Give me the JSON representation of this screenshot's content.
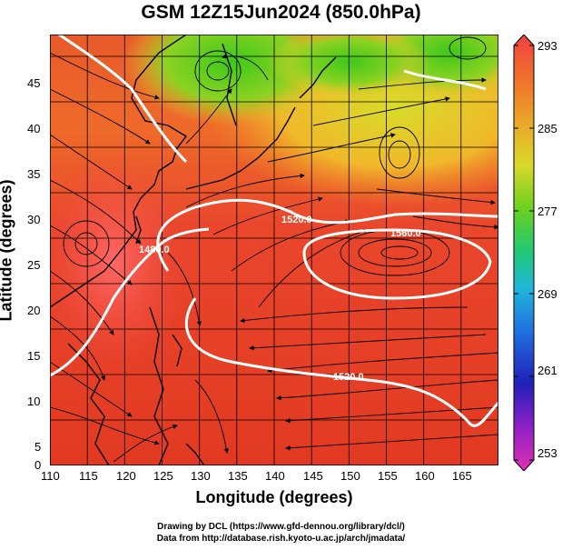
{
  "title": "GSM 12Z15Jun2024 (850.0hPa)",
  "xlabel": "Longitude (degrees)",
  "ylabel": "Latitude  (degrees)",
  "x_ticks": [
    "110",
    "115",
    "120",
    "125",
    "130",
    "135",
    "140",
    "145",
    "150",
    "155",
    "160",
    "165"
  ],
  "y_ticks": [
    "45",
    "40",
    "35",
    "30",
    "25",
    "20",
    "15",
    "10",
    "5",
    "0"
  ],
  "colorbar_ticks": [
    "293",
    "285",
    "277",
    "269",
    "261",
    "253"
  ],
  "contour_labels": [
    "1520.0",
    "1480.0",
    "1560.0",
    "1520.0"
  ],
  "credits": {
    "line1": "Drawing by DCL (https://www.gfd-dennou.org/library/dcl/)",
    "line2": "Data from http://database.rish.kyoto-u.ac.jp/arch/jmadata/"
  },
  "colors": {
    "warm": "#e8402a",
    "hot": "#ff5a4a",
    "orange": "#f28a28",
    "yellow": "#e8d82a",
    "green": "#50c81e",
    "contour": "#ffffff"
  }
}
